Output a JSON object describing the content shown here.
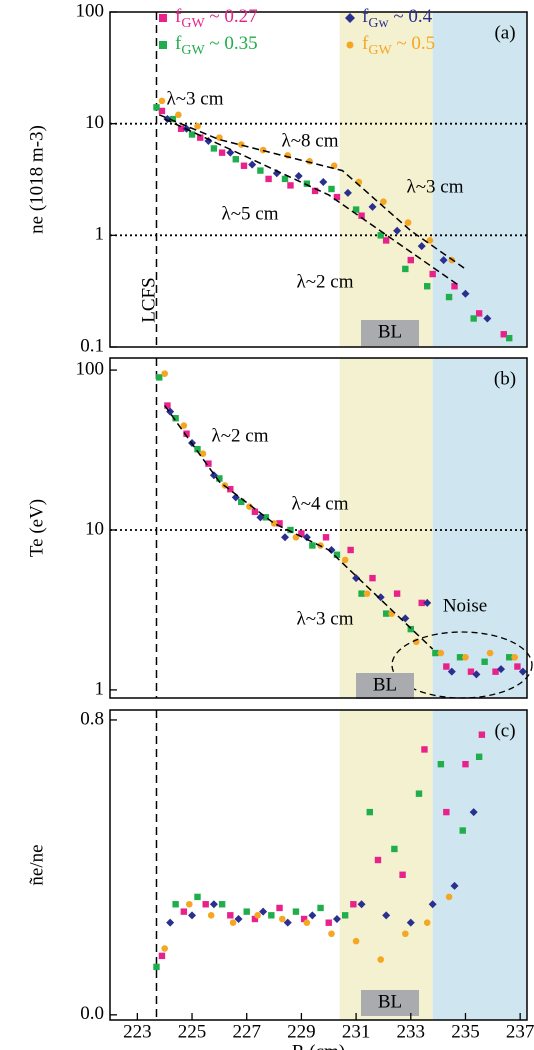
{
  "chart_data": [
    {
      "type": "scatter",
      "panel_label": "(a)",
      "ylabel": "ne (1018 m-3)",
      "log_y": true,
      "xlim": [
        222,
        237.25
      ],
      "ylim": [
        0.1,
        100
      ],
      "yticks": [
        0.1,
        1,
        10,
        100
      ],
      "legend": "top",
      "hlines": [
        10,
        1
      ],
      "vline": 223.7,
      "shaded_regions": [
        {
          "x": [
            230.4,
            233.8
          ],
          "color": "#f3f1cf"
        },
        {
          "x": [
            233.8,
            237.25
          ],
          "color": "#cfe6f1"
        }
      ],
      "annotations": [
        "λ~3 cm",
        "λ~8 cm",
        "λ~3 cm",
        "λ~5 cm",
        "λ~2 cm",
        "LCFS",
        "BL"
      ],
      "fit_lines": [
        {
          "x": [
            223.8,
            226,
            230.5,
            233,
            235
          ],
          "y": [
            12,
            7.2,
            3.8,
            1.1,
            0.5
          ]
        },
        {
          "x": [
            224,
            230,
            234.8
          ],
          "y": [
            11,
            2.3,
            0.35
          ]
        }
      ],
      "series": [
        {
          "name": "fGW ~ 0.27",
          "color": "#e8228a",
          "marker": "square",
          "x": [
            223.9,
            224.6,
            225.3,
            226.1,
            226.9,
            227.8,
            228.6,
            229.5,
            230.3,
            231.2,
            232.1,
            233.0,
            233.8,
            234.6,
            235.5,
            236.4
          ],
          "values": [
            13,
            9,
            7.5,
            5.5,
            4.2,
            3.2,
            2.8,
            2.5,
            2.2,
            1.5,
            0.9,
            0.6,
            0.45,
            0.35,
            0.2,
            0.13
          ]
        },
        {
          "name": "fGW ~ 0.35",
          "color": "#1fae4b",
          "marker": "square",
          "x": [
            223.7,
            224.3,
            225.0,
            225.8,
            226.6,
            227.5,
            228.4,
            229.2,
            230.1,
            231.0,
            231.9,
            232.8,
            233.6,
            234.4,
            235.3,
            236.6
          ],
          "values": [
            14,
            11,
            8,
            6,
            4.8,
            3.8,
            3.2,
            2.9,
            2.6,
            1.7,
            1.0,
            0.5,
            0.35,
            0.28,
            0.18,
            0.12
          ]
        },
        {
          "name": "fGw ~ 0.4",
          "color": "#2b2f8f",
          "marker": "diamond",
          "x": [
            224.1,
            224.8,
            225.6,
            226.4,
            227.2,
            228.1,
            228.9,
            229.8,
            230.7,
            231.6,
            232.5,
            233.4,
            234.2,
            235.0,
            235.8
          ],
          "values": [
            11,
            9,
            7,
            5.5,
            4.3,
            3.6,
            3.4,
            3.0,
            2.4,
            1.8,
            1.1,
            0.8,
            0.6,
            0.3,
            0.18
          ]
        },
        {
          "name": "fGW ~ 0.5",
          "color": "#f5a623",
          "marker": "circle",
          "x": [
            223.9,
            224.5,
            225.2,
            226.0,
            226.8,
            227.6,
            228.5,
            229.3,
            230.2,
            231.1,
            232.0,
            232.9,
            233.7,
            234.5
          ],
          "values": [
            16,
            12,
            9.5,
            7.5,
            6.5,
            5.8,
            5.2,
            4.6,
            4.2,
            3.0,
            2.0,
            1.3,
            0.9,
            0.6
          ]
        }
      ]
    },
    {
      "type": "scatter",
      "panel_label": "(b)",
      "ylabel": "Te (eV)",
      "log_y": true,
      "xlim": [
        222,
        237.25
      ],
      "ylim": [
        0.89,
        119
      ],
      "yticks": [
        1,
        10,
        100
      ],
      "hlines": [
        10
      ],
      "vline": 223.7,
      "shaded_regions": [
        {
          "x": [
            230.4,
            233.8
          ],
          "color": "#f3f1cf"
        },
        {
          "x": [
            233.8,
            237.25
          ],
          "color": "#cfe6f1"
        }
      ],
      "annotations": [
        "λ~2 cm",
        "λ~4 cm",
        "λ~3 cm",
        "Noise",
        "BL"
      ],
      "fit_lines": [
        {
          "x": [
            224,
            226,
            228,
            230,
            233.8
          ],
          "y": [
            60,
            20,
            11,
            7.5,
            1.8
          ]
        }
      ],
      "series": [
        {
          "name": "fGW ~ 0.27",
          "color": "#e8228a",
          "marker": "square",
          "x": [
            224.1,
            224.8,
            225.6,
            226.4,
            227.3,
            228.2,
            229.0,
            229.9,
            230.8,
            231.6,
            232.5,
            233.4,
            234.3,
            235.2,
            236.1,
            236.9
          ],
          "values": [
            60,
            40,
            26,
            18,
            13,
            11,
            9.5,
            9,
            7.5,
            5,
            4,
            3.5,
            1.4,
            1.3,
            1.3,
            1.4
          ]
        },
        {
          "name": "fGW ~ 0.35",
          "color": "#1fae4b",
          "marker": "square",
          "x": [
            223.8,
            224.4,
            225.2,
            226.0,
            226.8,
            227.7,
            228.6,
            229.4,
            230.3,
            231.2,
            232.1,
            233.0,
            233.9,
            234.8,
            235.7,
            236.6
          ],
          "values": [
            90,
            50,
            32,
            21,
            15,
            12,
            10,
            8,
            7,
            4,
            3,
            2.4,
            1.7,
            1.6,
            1.5,
            1.6
          ]
        },
        {
          "name": "fGw ~ 0.4",
          "color": "#2b2f8f",
          "marker": "diamond",
          "x": [
            224.2,
            225.0,
            225.8,
            226.6,
            227.5,
            228.4,
            229.2,
            230.1,
            231.0,
            231.9,
            232.8,
            233.6,
            234.5,
            235.4,
            236.3,
            237.1
          ],
          "values": [
            55,
            35,
            22,
            16,
            12,
            9,
            9,
            7.5,
            5,
            3.8,
            2.8,
            3.5,
            1.3,
            1.25,
            1.35,
            1.3
          ]
        },
        {
          "name": "fGW ~ 0.5",
          "color": "#f5a623",
          "marker": "circle",
          "x": [
            224.0,
            224.7,
            225.4,
            226.2,
            227.1,
            228.0,
            228.8,
            229.7,
            230.6,
            231.4,
            232.3,
            233.2,
            234.1,
            235.0,
            235.9,
            236.8
          ],
          "values": [
            95,
            45,
            30,
            19,
            14,
            11,
            9,
            8,
            6.5,
            4,
            3,
            2,
            1.7,
            1.6,
            1.7,
            1.6
          ]
        }
      ]
    },
    {
      "type": "scatter",
      "panel_label": "(c)",
      "ylabel": "ñe/ne",
      "xlabel": "R (cm)",
      "xlim": [
        222,
        237.25
      ],
      "xticks": [
        223,
        225,
        227,
        229,
        231,
        233,
        235,
        237
      ],
      "ylim": [
        -0.014,
        0.827
      ],
      "yticks": [
        {
          "value": 0,
          "label": "0.0"
        },
        0.8
      ],
      "vline": 223.7,
      "shaded_regions": [
        {
          "x": [
            230.4,
            233.8
          ],
          "color": "#f3f1cf"
        },
        {
          "x": [
            233.8,
            237.25
          ],
          "color": "#cfe6f1"
        }
      ],
      "annotations": [
        "BL"
      ],
      "series": [
        {
          "name": "fGW ~ 0.27",
          "color": "#e8228a",
          "marker": "square",
          "x": [
            223.9,
            224.7,
            225.5,
            226.4,
            227.3,
            228.2,
            229.1,
            230.0,
            230.9,
            231.8,
            232.7,
            233.5,
            234.3,
            235.0,
            235.6
          ],
          "values": [
            0.16,
            0.28,
            0.3,
            0.27,
            0.26,
            0.29,
            0.26,
            0.25,
            0.3,
            0.42,
            0.38,
            0.72,
            0.55,
            0.68,
            0.76
          ]
        },
        {
          "name": "fGW ~ 0.35",
          "color": "#1fae4b",
          "marker": "square",
          "x": [
            223.7,
            224.4,
            225.2,
            226.1,
            227.0,
            227.9,
            228.8,
            229.7,
            230.6,
            231.5,
            232.4,
            233.3,
            234.1,
            234.9,
            235.5
          ],
          "values": [
            0.13,
            0.3,
            0.32,
            0.3,
            0.28,
            0.27,
            0.28,
            0.29,
            0.27,
            0.55,
            0.45,
            0.6,
            0.68,
            0.5,
            0.7
          ]
        },
        {
          "name": "fGw ~ 0.4",
          "color": "#2b2f8f",
          "marker": "diamond",
          "x": [
            224.2,
            225.0,
            225.8,
            226.7,
            227.6,
            228.5,
            229.4,
            230.3,
            231.2,
            232.1,
            233.0,
            233.8,
            234.6,
            235.3
          ],
          "values": [
            0.25,
            0.27,
            0.3,
            0.26,
            0.28,
            0.25,
            0.27,
            0.26,
            0.3,
            0.27,
            0.25,
            0.3,
            0.35,
            0.55
          ]
        },
        {
          "name": "fGW ~ 0.5",
          "color": "#f5a623",
          "marker": "circle",
          "x": [
            224.0,
            224.9,
            225.7,
            226.5,
            227.4,
            228.3,
            229.2,
            230.1,
            231.0,
            231.9,
            232.8,
            233.6,
            234.4
          ],
          "values": [
            0.18,
            0.3,
            0.27,
            0.25,
            0.27,
            0.26,
            0.25,
            0.22,
            0.2,
            0.15,
            0.22,
            0.25,
            0.32
          ]
        }
      ]
    }
  ]
}
